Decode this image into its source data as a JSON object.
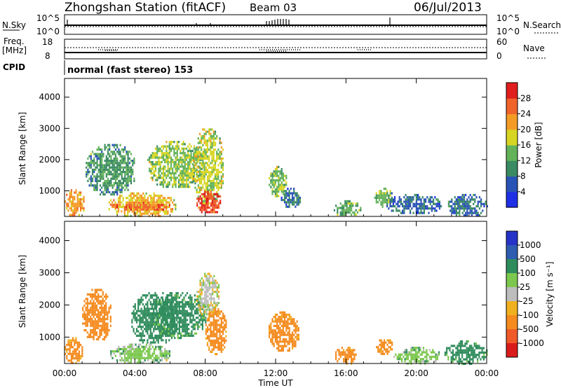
{
  "header": {
    "station": "Zhongshan Station (fitACF)",
    "beam": "Beam 03",
    "date": "06/Jul/2013"
  },
  "ancillary": {
    "nsky_label": "N.Sky",
    "nsky_ticks": [
      "10^5",
      "10^0"
    ],
    "nsearch_label": "N.Search",
    "nsearch_ticks": [
      "10^5",
      "10^0"
    ],
    "freq_label_1": "Freq.",
    "freq_label_2": "[MHz]",
    "freq_ticks": [
      "18",
      "8"
    ],
    "nave_label": "Nave",
    "nave_ticks": [
      "60",
      "0"
    ],
    "cpid_label": "CPID",
    "cpid_text": "normal (fast stereo) 153"
  },
  "chart_data": [
    {
      "type": "heatmap",
      "panel": "power",
      "xlabel": "Time UT",
      "ylabel": "Slant Range [km]",
      "xlim": [
        0,
        24
      ],
      "ylim": [
        180,
        4600
      ],
      "x_ticks": [
        "00:00",
        "04:00",
        "08:00",
        "12:00",
        "16:00",
        "20:00",
        "00:00"
      ],
      "y_ticks": [
        1000,
        2000,
        3000,
        4000
      ],
      "colorbar": {
        "label": "Power [dB]",
        "ticks": [
          4,
          8,
          12,
          16,
          20,
          24,
          28
        ],
        "colors": [
          "#1e2fe6",
          "#2a53b7",
          "#3a8a62",
          "#63b25a",
          "#d7d523",
          "#f49b26",
          "#f0632a",
          "#e01e1e"
        ]
      },
      "regions": [
        {
          "x": [
            0.0,
            1.1
          ],
          "y": [
            200,
            1050
          ],
          "value": 22
        },
        {
          "x": [
            2.5,
            6.3
          ],
          "y": [
            200,
            950
          ],
          "value": 20
        },
        {
          "x": [
            2.6,
            6.0
          ],
          "y": [
            400,
            650
          ],
          "value": 26
        },
        {
          "x": [
            1.2,
            4.0
          ],
          "y": [
            900,
            2500
          ],
          "value": 11
        },
        {
          "x": [
            4.7,
            7.8
          ],
          "y": [
            1100,
            2600
          ],
          "value": 15
        },
        {
          "x": [
            7.3,
            9.0
          ],
          "y": [
            600,
            3000
          ],
          "value": 17
        },
        {
          "x": [
            7.5,
            8.9
          ],
          "y": [
            300,
            1000
          ],
          "value": 28
        },
        {
          "x": [
            11.6,
            12.6
          ],
          "y": [
            800,
            1800
          ],
          "value": 15
        },
        {
          "x": [
            12.3,
            13.4
          ],
          "y": [
            500,
            1100
          ],
          "value": 8
        },
        {
          "x": [
            15.3,
            16.8
          ],
          "y": [
            200,
            700
          ],
          "value": 13
        },
        {
          "x": [
            17.6,
            18.6
          ],
          "y": [
            500,
            1100
          ],
          "value": 14
        },
        {
          "x": [
            18.3,
            21.4
          ],
          "y": [
            300,
            900
          ],
          "value": 7
        },
        {
          "x": [
            21.8,
            24.0
          ],
          "y": [
            200,
            900
          ],
          "value": 8
        }
      ]
    },
    {
      "type": "heatmap",
      "panel": "velocity",
      "xlabel": "Time UT",
      "ylabel": "Slant Range [km]",
      "xlim": [
        0,
        24
      ],
      "ylim": [
        180,
        4600
      ],
      "x_ticks": [
        "00:00",
        "04:00",
        "08:00",
        "12:00",
        "16:00",
        "20:00",
        "00:00"
      ],
      "y_ticks": [
        1000,
        2000,
        3000,
        4000
      ],
      "colorbar": {
        "label": "Velocity [m s⁻¹]",
        "ticks": [
          "1000",
          "500",
          "100",
          "25",
          "-25",
          "-100",
          "-500",
          "-1000"
        ],
        "colors": [
          "#2633c8",
          "#2e5cb0",
          "#2f8c5c",
          "#7cc84e",
          "#bdbdbd",
          "#f0b020",
          "#f58b1f",
          "#f05a28",
          "#d91b1b"
        ]
      },
      "regions": [
        {
          "x": [
            0.0,
            1.0
          ],
          "y": [
            200,
            1000
          ],
          "value": -150
        },
        {
          "x": [
            1.0,
            2.6
          ],
          "y": [
            900,
            2500
          ],
          "value": -400
        },
        {
          "x": [
            2.6,
            6.0
          ],
          "y": [
            200,
            800
          ],
          "value": 60
        },
        {
          "x": [
            3.8,
            6.4
          ],
          "y": [
            800,
            2400
          ],
          "value": 400
        },
        {
          "x": [
            5.0,
            8.0
          ],
          "y": [
            1000,
            2400
          ],
          "value": 150
        },
        {
          "x": [
            7.5,
            8.8
          ],
          "y": [
            1600,
            3000
          ],
          "value": 0
        },
        {
          "x": [
            8.0,
            9.2
          ],
          "y": [
            500,
            1900
          ],
          "value": -150
        },
        {
          "x": [
            11.6,
            13.3
          ],
          "y": [
            600,
            1800
          ],
          "value": -150
        },
        {
          "x": [
            15.3,
            16.6
          ],
          "y": [
            200,
            700
          ],
          "value": -150
        },
        {
          "x": [
            17.7,
            18.6
          ],
          "y": [
            500,
            1000
          ],
          "value": -150
        },
        {
          "x": [
            18.7,
            21.3
          ],
          "y": [
            200,
            700
          ],
          "value": 60
        },
        {
          "x": [
            21.6,
            24.0
          ],
          "y": [
            200,
            900
          ],
          "value": 150
        }
      ]
    }
  ]
}
